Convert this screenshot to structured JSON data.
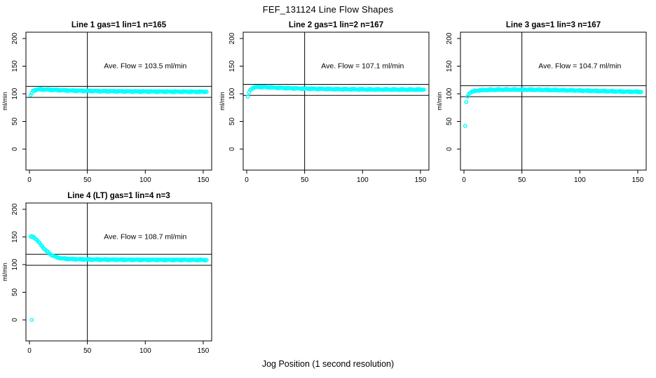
{
  "page": {
    "title": "FEF_131124  Line Flow Shapes",
    "xlabel": "Jog Position (1 second resolution)",
    "background_color": "#ffffff",
    "frame_color": "#000000"
  },
  "chart_data": [
    {
      "type": "scatter",
      "title": "Line 1 gas=1 lin=1 n=165",
      "ylabel": "ml/min",
      "annotation": "Ave. Flow =  103.5  ml/min",
      "ave_flow": 103.5,
      "n": 165,
      "x_ticks": [
        0,
        50,
        100,
        150
      ],
      "y_ticks": [
        0,
        50,
        100,
        150,
        200
      ],
      "xlim": [
        -3,
        157
      ],
      "ylim": [
        -40,
        212
      ],
      "ref_line_low": 93.5,
      "ref_line_high": 113.5,
      "vline_x": 50,
      "point_color": "#00FFFF",
      "shape_points": [
        [
          1,
          97
        ],
        [
          2,
          101.5
        ],
        [
          3,
          104.5
        ],
        [
          4,
          106
        ],
        [
          5,
          107
        ],
        [
          7,
          107.8
        ],
        [
          10,
          108
        ],
        [
          15,
          107.6
        ],
        [
          20,
          107.2
        ],
        [
          30,
          106.3
        ],
        [
          40,
          105.6
        ],
        [
          50,
          105.2
        ],
        [
          60,
          104.9
        ],
        [
          80,
          104.5
        ],
        [
          100,
          104.2
        ],
        [
          120,
          104
        ],
        [
          140,
          103.8
        ],
        [
          153,
          103.7
        ]
      ],
      "outliers": []
    },
    {
      "type": "scatter",
      "title": "Line 2 gas=1 lin=2 n=167",
      "ylabel": "ml/min",
      "annotation": "Ave. Flow =  107.1  ml/min",
      "ave_flow": 107.1,
      "n": 167,
      "x_ticks": [
        0,
        50,
        100,
        150
      ],
      "y_ticks": [
        0,
        50,
        100,
        150,
        200
      ],
      "xlim": [
        -3,
        157
      ],
      "ylim": [
        -40,
        212
      ],
      "ref_line_low": 97.1,
      "ref_line_high": 117.1,
      "vline_x": 50,
      "point_color": "#00FFFF",
      "shape_points": [
        [
          2,
          102
        ],
        [
          3,
          106.5
        ],
        [
          4,
          109
        ],
        [
          5,
          110.5
        ],
        [
          7,
          111.8
        ],
        [
          10,
          112.3
        ],
        [
          15,
          112.2
        ],
        [
          20,
          111.7
        ],
        [
          25,
          111.2
        ],
        [
          30,
          110.7
        ],
        [
          40,
          109.9
        ],
        [
          50,
          109.4
        ],
        [
          60,
          109
        ],
        [
          80,
          108.4
        ],
        [
          100,
          108
        ],
        [
          120,
          107.8
        ],
        [
          140,
          107.6
        ],
        [
          153,
          107.5
        ]
      ],
      "outliers": [
        [
          1,
          95
        ]
      ]
    },
    {
      "type": "scatter",
      "title": "Line 3 gas=1 lin=3 n=167",
      "ylabel": "ml/min",
      "annotation": "Ave. Flow =  104.7  ml/min",
      "ave_flow": 104.7,
      "n": 167,
      "x_ticks": [
        0,
        50,
        100,
        150
      ],
      "y_ticks": [
        0,
        50,
        100,
        150,
        200
      ],
      "xlim": [
        -3,
        157
      ],
      "ylim": [
        -40,
        212
      ],
      "ref_line_low": 94.7,
      "ref_line_high": 114.7,
      "vline_x": 50,
      "point_color": "#00FFFF",
      "shape_points": [
        [
          3,
          95
        ],
        [
          4,
          99
        ],
        [
          5,
          101.5
        ],
        [
          6,
          103
        ],
        [
          8,
          104.5
        ],
        [
          10,
          105.5
        ],
        [
          15,
          106.5
        ],
        [
          20,
          107
        ],
        [
          30,
          107.5
        ],
        [
          40,
          107.6
        ],
        [
          50,
          107.5
        ],
        [
          60,
          107.3
        ],
        [
          80,
          106.7
        ],
        [
          100,
          105.8
        ],
        [
          120,
          104.9
        ],
        [
          140,
          104
        ],
        [
          153,
          103.5
        ]
      ],
      "outliers": [
        [
          1,
          42
        ],
        [
          2,
          85
        ]
      ]
    },
    {
      "type": "scatter",
      "title": "Line 4 (LT) gas=1 lin=4 n=3",
      "ylabel": "ml/min",
      "annotation": "Ave. Flow =  108.7  ml/min",
      "ave_flow": 108.7,
      "n": 3,
      "x_ticks": [
        0,
        50,
        100,
        150
      ],
      "y_ticks": [
        0,
        50,
        100,
        150,
        200
      ],
      "xlim": [
        -3,
        157
      ],
      "ylim": [
        -40,
        212
      ],
      "ref_line_low": 98.7,
      "ref_line_high": 118.7,
      "vline_x": 50,
      "point_color": "#00FFFF",
      "shape_points": [
        [
          1,
          150.5
        ],
        [
          2,
          150.5
        ],
        [
          3,
          150
        ],
        [
          4,
          149
        ],
        [
          5,
          147.5
        ],
        [
          6,
          145.5
        ],
        [
          7,
          143
        ],
        [
          8,
          140.5
        ],
        [
          9,
          138
        ],
        [
          10,
          135.5
        ],
        [
          11,
          133
        ],
        [
          12,
          130.5
        ],
        [
          13,
          128.3
        ],
        [
          14,
          126.2
        ],
        [
          15,
          124.2
        ],
        [
          16,
          122.3
        ],
        [
          17,
          120.6
        ],
        [
          18,
          119
        ],
        [
          19,
          117.6
        ],
        [
          20,
          116.4
        ],
        [
          22,
          114.4
        ],
        [
          24,
          113
        ],
        [
          26,
          112
        ],
        [
          28,
          111.3
        ],
        [
          30,
          110.8
        ],
        [
          35,
          110.1
        ],
        [
          40,
          109.8
        ],
        [
          50,
          109.4
        ],
        [
          60,
          109.2
        ],
        [
          70,
          109
        ],
        [
          80,
          108.9
        ],
        [
          100,
          108.7
        ],
        [
          120,
          108.6
        ],
        [
          140,
          108.5
        ],
        [
          153,
          108.4
        ]
      ],
      "outliers": [
        [
          2,
          0
        ]
      ]
    }
  ]
}
